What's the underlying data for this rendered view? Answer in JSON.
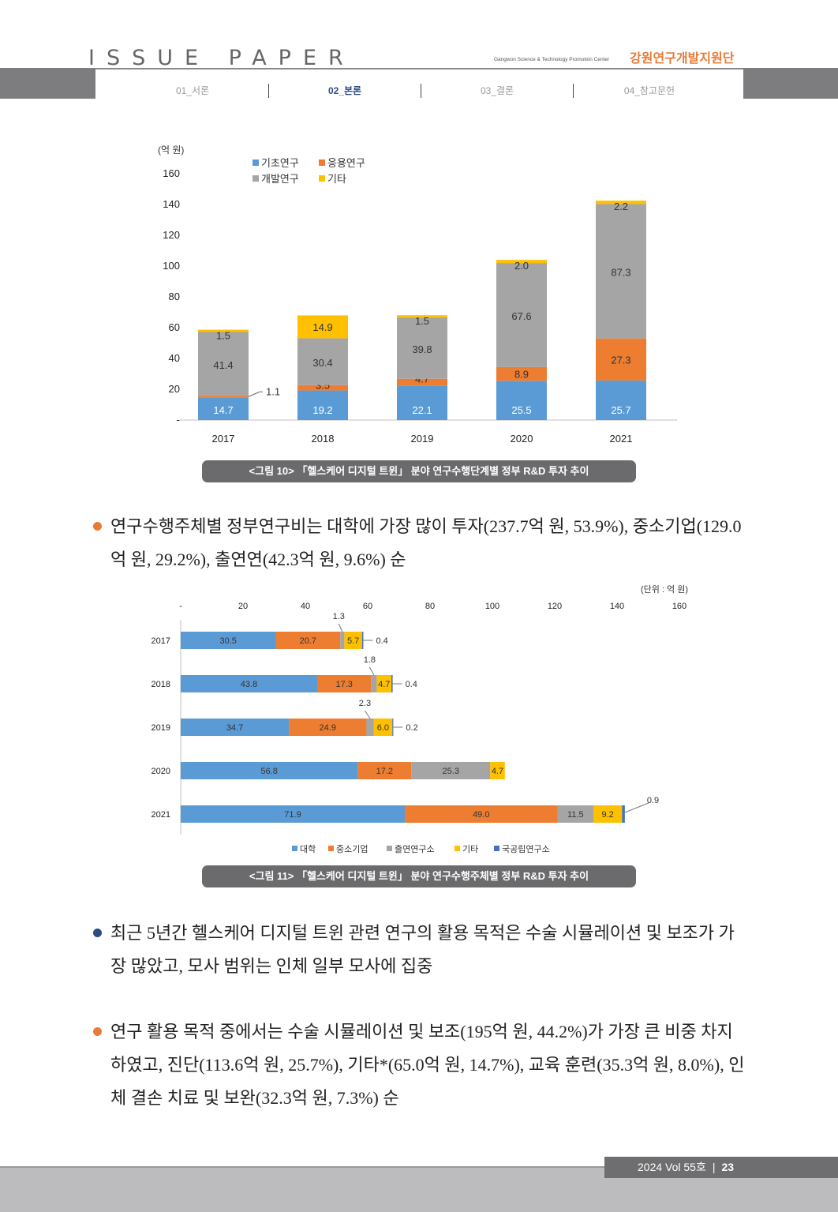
{
  "header": {
    "title": "ISSUE PAPER",
    "subtitle": "Gangwon Science & Technology Promotion Center",
    "org": "강원연구개발지원단",
    "nav": [
      "01_서론",
      "02_본론",
      "03_결론",
      "04_참고문헌"
    ]
  },
  "colors": {
    "blue": "#5b9bd5",
    "orange": "#ed7d31",
    "gray": "#a5a5a5",
    "yellow": "#ffc000",
    "navy": "#4472c4",
    "bullet_orange": "#e87b36",
    "bullet_navy": "#2c4d82"
  },
  "chart_data": [
    {
      "type": "bar",
      "orientation": "vertical",
      "stacked": true,
      "unit": "(억 원)",
      "categories": [
        "2017",
        "2018",
        "2019",
        "2020",
        "2021"
      ],
      "yticks": [
        "-",
        "20",
        "40",
        "60",
        "80",
        "100",
        "120",
        "140",
        "160"
      ],
      "ylim": [
        0,
        160
      ],
      "series": [
        {
          "name": "기초연구",
          "color": "#5b9bd5",
          "values": [
            14.7,
            19.2,
            22.1,
            25.5,
            25.7
          ],
          "labels": [
            "14.7",
            "19.2",
            "22.1",
            "25.5",
            "25.7"
          ]
        },
        {
          "name": "응용연구",
          "color": "#ed7d31",
          "values": [
            1.1,
            3.5,
            4.7,
            8.9,
            27.3
          ],
          "labels": [
            "1.1",
            "3.5",
            "4.7",
            "8.9",
            "27.3"
          ]
        },
        {
          "name": "개발연구",
          "color": "#a5a5a5",
          "values": [
            41.4,
            30.4,
            39.8,
            67.6,
            87.3
          ],
          "labels": [
            "41.4",
            "30.4",
            "39.8",
            "67.6",
            "87.3"
          ]
        },
        {
          "name": "기타",
          "color": "#ffc000",
          "values": [
            1.5,
            14.9,
            1.5,
            2.0,
            2.2
          ],
          "labels": [
            "1.5",
            "14.9",
            "1.5",
            "2.0",
            "2.2"
          ]
        }
      ],
      "legend": [
        "기초연구",
        "응용연구",
        "개발연구",
        "기타"
      ]
    },
    {
      "type": "bar",
      "orientation": "horizontal",
      "stacked": true,
      "unit": "(단위 : 억 원)",
      "categories": [
        "2017",
        "2018",
        "2019",
        "2020",
        "2021"
      ],
      "xticks": [
        "-",
        "20",
        "40",
        "60",
        "80",
        "100",
        "120",
        "140",
        "160"
      ],
      "xlim": [
        0,
        160
      ],
      "series": [
        {
          "name": "대학",
          "color": "#5b9bd5",
          "values": [
            30.5,
            43.8,
            34.7,
            56.8,
            71.9
          ],
          "labels": [
            "30.5",
            "43.8",
            "34.7",
            "56.8",
            "71.9"
          ]
        },
        {
          "name": "중소기업",
          "color": "#ed7d31",
          "values": [
            20.7,
            17.3,
            24.9,
            17.2,
            49.0
          ],
          "labels": [
            "20.7",
            "17.3",
            "24.9",
            "17.2",
            "49.0"
          ]
        },
        {
          "name": "출연연구소",
          "color": "#a5a5a5",
          "values": [
            1.3,
            1.8,
            2.3,
            25.3,
            11.5
          ],
          "labels": [
            "1.3",
            "1.8",
            "2.3",
            "25.3",
            "11.5"
          ]
        },
        {
          "name": "기타",
          "color": "#ffc000",
          "values": [
            5.7,
            4.7,
            6.0,
            4.7,
            9.2
          ],
          "labels": [
            "5.7",
            "4.7",
            "6.0",
            "4.7",
            "9.2"
          ]
        },
        {
          "name": "국공립연구소",
          "color": "#4472c4",
          "values": [
            0.4,
            0.4,
            0.2,
            0,
            0.9
          ],
          "labels": [
            "0.4",
            "0.4",
            "0.2",
            "",
            "0.9"
          ]
        }
      ],
      "legend": [
        "대학",
        "중소기업",
        "출연연구소",
        "기타",
        "국공립연구소"
      ]
    }
  ],
  "figures": {
    "fig10_caption": "<그림 10> 「헬스케어 디지털 트윈」 분야 연구수행단계별 정부 R&D 투자 추이",
    "fig11_caption": "<그림 11> 「헬스케어 디지털 트윈」 분야 연구수행주체별 정부 R&D 투자 추이"
  },
  "paragraphs": {
    "p1": "연구수행주체별 정부연구비는 대학에 가장 많이 투자(237.7억 원, 53.9%), 중소기업(129.0억 원, 29.2%), 출연연(42.3억 원, 9.6%) 순",
    "p2": "최근 5년간 헬스케어 디지털 트윈 관련 연구의 활용 목적은 수술 시뮬레이션 및 보조가 가장 많았고, 모사 범위는 인체 일부 모사에 집중",
    "p3": "연구 활용 목적 중에서는 수술 시뮬레이션 및 보조(195억 원, 44.2%)가 가장 큰 비중 차지하였고, 진단(113.6억 원, 25.7%), 기타*(65.0억 원, 14.7%), 교육 훈련(35.3억 원, 8.0%), 인체 결손 치료 및 보완(32.3억 원, 7.3%) 순"
  },
  "footer": {
    "issue": "2024 Vol 55호",
    "page": "23"
  }
}
